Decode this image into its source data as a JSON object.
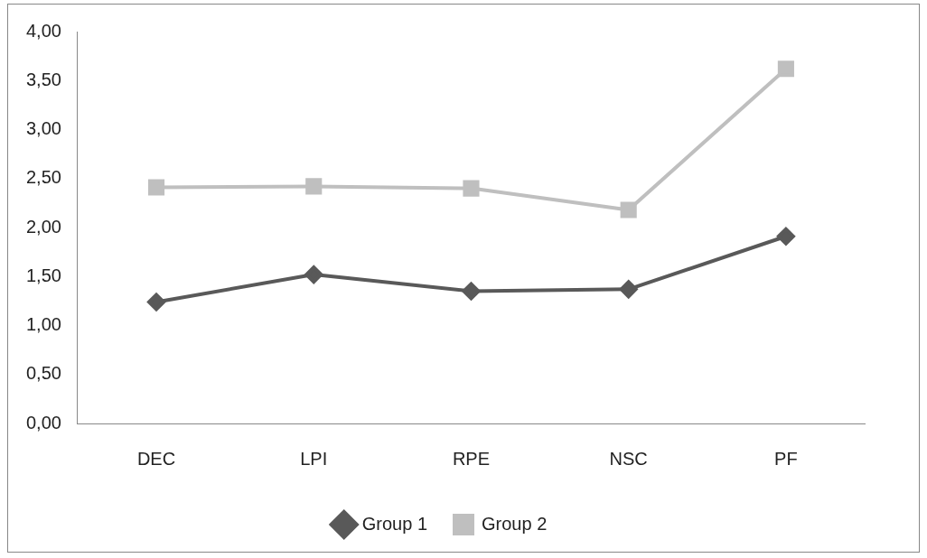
{
  "chart_data": {
    "type": "line",
    "categories": [
      "DEC",
      "LPI",
      "RPE",
      "NSC",
      "PF"
    ],
    "series": [
      {
        "name": "Group 1",
        "color": "#595959",
        "values": [
          1.24,
          1.52,
          1.35,
          1.37,
          1.91
        ],
        "marker": "diamond"
      },
      {
        "name": "Group 2",
        "color": "#bfbfbf",
        "values": [
          2.41,
          2.42,
          2.4,
          2.18,
          3.62
        ],
        "marker": "square"
      }
    ],
    "ylim": [
      0,
      4
    ],
    "yticks": [
      {
        "value": 0,
        "label": "0,00"
      },
      {
        "value": 0.5,
        "label": "0,50"
      },
      {
        "value": 1,
        "label": "1,00"
      },
      {
        "value": 1.5,
        "label": "1,50"
      },
      {
        "value": 2,
        "label": "2,00"
      },
      {
        "value": 2.5,
        "label": "2,50"
      },
      {
        "value": 3,
        "label": "3,00"
      },
      {
        "value": 3.5,
        "label": "3,50"
      },
      {
        "value": 4,
        "label": "4,00"
      }
    ],
    "grid": false,
    "legend": "bottom",
    "line_style": "solid"
  }
}
